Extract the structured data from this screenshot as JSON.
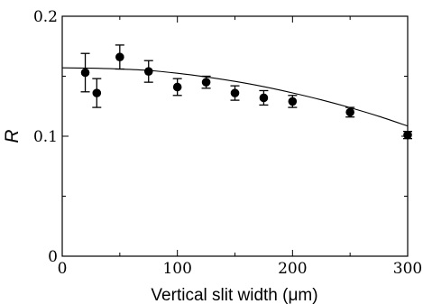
{
  "chart_data": {
    "type": "scatter",
    "xlabel": "Vertical slit width (μm)",
    "ylabel": "R",
    "xlim": [
      0,
      300
    ],
    "ylim": [
      0,
      0.2
    ],
    "xticks": [
      0,
      100,
      200,
      300
    ],
    "xtick_labels": [
      "0",
      "100",
      "200",
      "300"
    ],
    "yticks": [
      0,
      0.1,
      0.2
    ],
    "ytick_labels": [
      "0",
      "0.1",
      "0.2"
    ],
    "grid": false,
    "legend": "none",
    "series": [
      {
        "x": [
          20,
          30,
          50,
          75,
          100,
          125,
          150,
          175,
          200,
          250,
          300
        ],
        "y": [
          0.153,
          0.136,
          0.166,
          0.154,
          0.141,
          0.145,
          0.136,
          0.132,
          0.129,
          0.12,
          0.101
        ],
        "yerr": [
          0.016,
          0.012,
          0.01,
          0.009,
          0.007,
          0.005,
          0.006,
          0.006,
          0.005,
          0.004,
          0.003
        ],
        "color": "#000000"
      }
    ],
    "fit_curve": {
      "x": [
        0,
        25,
        50,
        75,
        100,
        125,
        150,
        175,
        200,
        225,
        250,
        275,
        300
      ],
      "y": [
        0.157,
        0.1567,
        0.156,
        0.1548,
        0.1525,
        0.1494,
        0.1457,
        0.1413,
        0.1361,
        0.1303,
        0.1238,
        0.1166,
        0.1085
      ],
      "color": "#000000"
    }
  }
}
